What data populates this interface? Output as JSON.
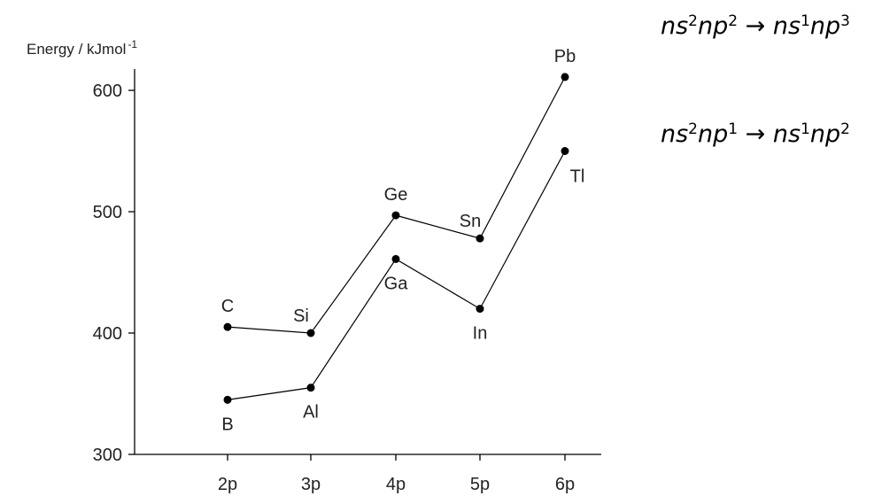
{
  "chart_data": {
    "type": "line",
    "ylabel": "Energy / kJmol",
    "ylabel_exp": "-1",
    "categories": [
      "2p",
      "3p",
      "4p",
      "5p",
      "6p"
    ],
    "ylim": [
      300,
      610
    ],
    "yticks": [
      300,
      400,
      500,
      600
    ],
    "grid": false,
    "series": [
      {
        "annotation": [
          "ns",
          "2",
          "np",
          "2",
          "→",
          "ns",
          "1",
          "np",
          "3"
        ],
        "values": [
          405,
          400,
          497,
          478,
          611
        ],
        "point_labels": [
          "C",
          "Si",
          "Ge",
          "Sn",
          "Pb"
        ],
        "label_positions": [
          "above",
          "above-left",
          "above",
          "above-left",
          "above"
        ]
      },
      {
        "annotation": [
          "ns",
          "2",
          "np",
          "1",
          "→",
          "ns",
          "1",
          "np",
          "2"
        ],
        "values": [
          345,
          355,
          461,
          420,
          550
        ],
        "point_labels": [
          "B",
          "Al",
          "Ga",
          "In",
          "Tl"
        ],
        "label_positions": [
          "below",
          "below",
          "below",
          "below",
          "below-right"
        ]
      }
    ]
  }
}
